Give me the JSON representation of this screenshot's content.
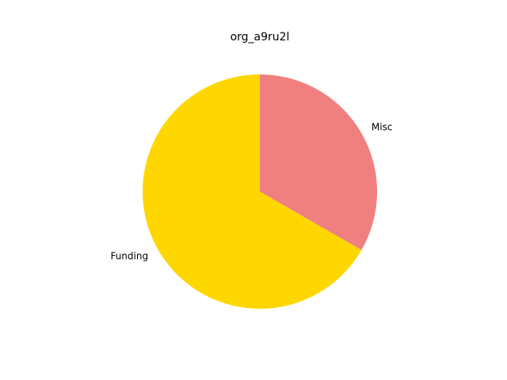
{
  "chart_data": {
    "type": "pie",
    "title": "org_a9ru2l",
    "start_angle_deg": 90,
    "direction": "counterclockwise",
    "slices": [
      {
        "label": "Funding",
        "value": 66.7,
        "color": "#FFD700"
      },
      {
        "label": "Misc",
        "value": 33.3,
        "color": "#F08080"
      }
    ]
  }
}
